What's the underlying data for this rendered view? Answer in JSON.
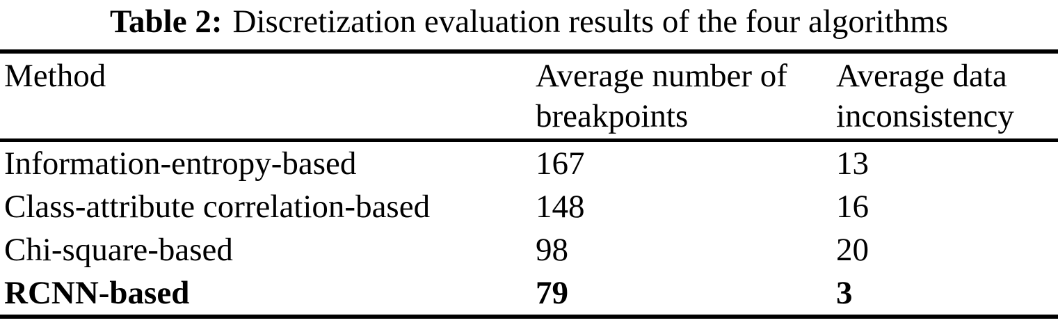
{
  "caption": {
    "label": "Table 2:",
    "text": "Discretization evaluation results of the four algorithms"
  },
  "table": {
    "columns": [
      "Method",
      "Average number of breakpoints",
      "Average data inconsistency"
    ],
    "rows": [
      {
        "method": "Information-entropy-based",
        "avg_breakpoints": "167",
        "avg_inconsistency": "13"
      },
      {
        "method": "Class-attribute correlation-based",
        "avg_breakpoints": "148",
        "avg_inconsistency": "16"
      },
      {
        "method": "Chi-square-based",
        "avg_breakpoints": "98",
        "avg_inconsistency": "20"
      },
      {
        "method": "RCNN-based",
        "avg_breakpoints": "79",
        "avg_inconsistency": "3"
      }
    ],
    "highlighted_row": "RCNN-based"
  },
  "colors": {
    "text": "#000000",
    "background": "#ffffff",
    "rule": "#000000"
  }
}
